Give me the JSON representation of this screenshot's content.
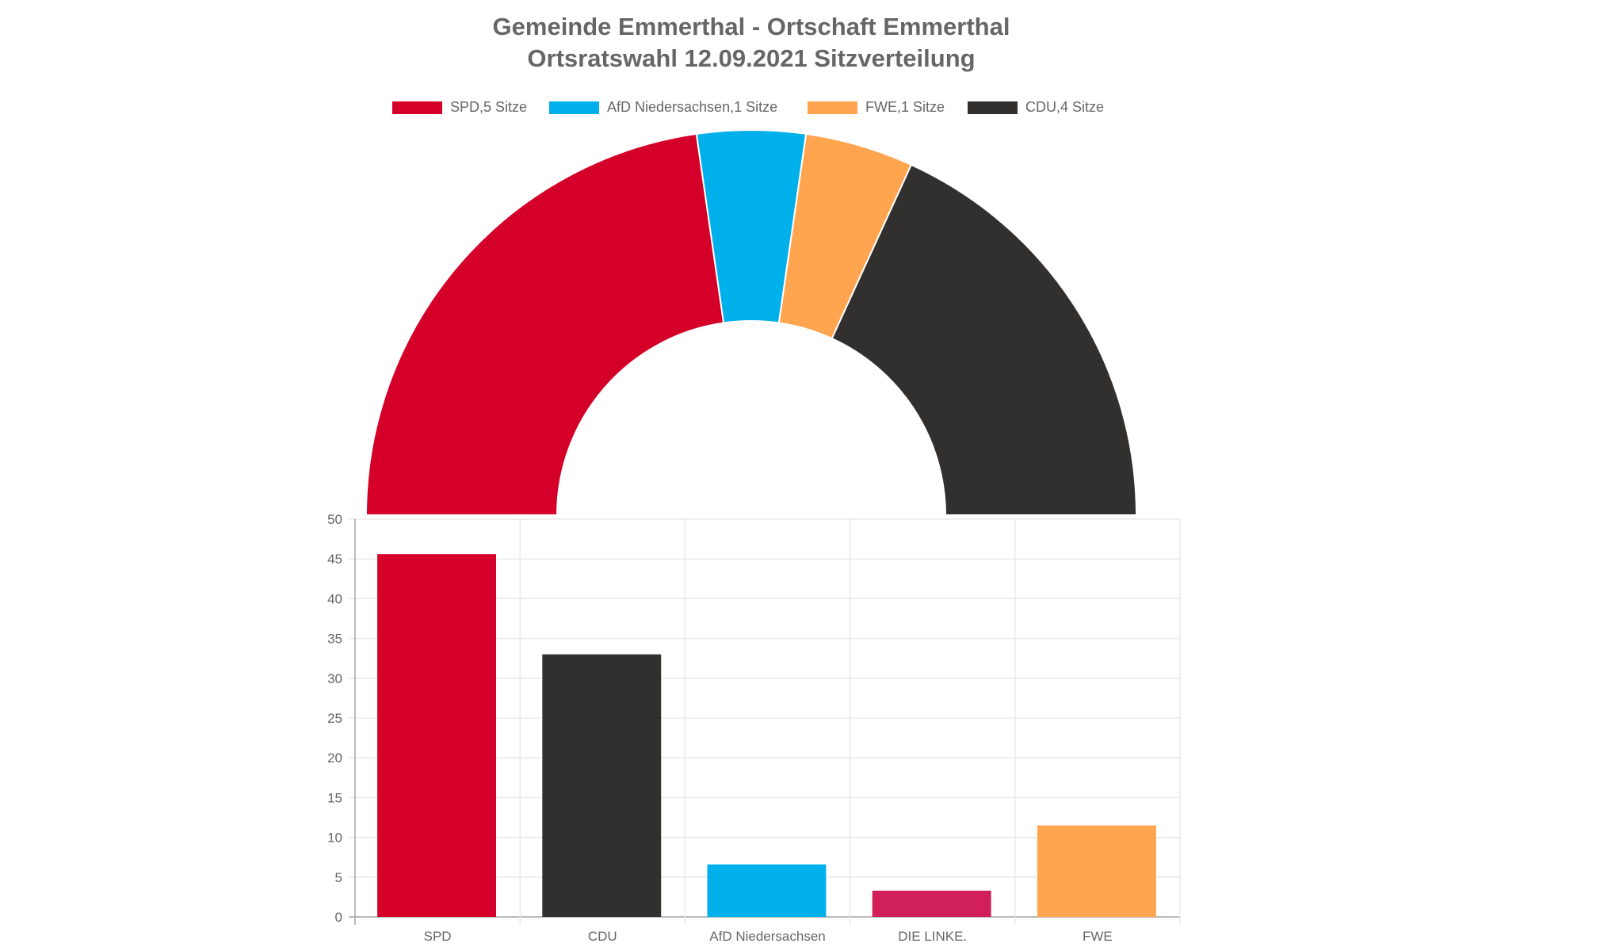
{
  "chart_data": [
    {
      "type": "pie",
      "variant": "half-doughnut",
      "title": [
        "Gemeinde Emmerthal - Ortschaft Emmerthal",
        "Ortsratswahl 12.09.2021 Sitzverteilung"
      ],
      "legend_position": "top",
      "labels": [
        "SPD,5 Sitze",
        "AfD Niedersachsen,1 Sitze",
        "FWE,1 Sitze",
        "CDU,4 Sitze"
      ],
      "values": [
        5,
        1,
        1,
        4
      ],
      "colors": [
        "#d50029",
        "#00b0eb",
        "#ffa550",
        "#32302f"
      ]
    },
    {
      "type": "bar",
      "categories": [
        "SPD",
        "CDU",
        "AfD Niedersachsen",
        "DIE LINKE.",
        "FWE"
      ],
      "values": [
        45.6,
        33.0,
        6.6,
        3.3,
        11.5
      ],
      "colors": [
        "#d50029",
        "#32302f",
        "#00b0eb",
        "#d11f5a",
        "#ffa550"
      ],
      "ylim": [
        0,
        50
      ],
      "yticks": [
        "0",
        "5",
        "10",
        "15",
        "20",
        "25",
        "30",
        "35",
        "40",
        "45",
        "50"
      ],
      "grid": true,
      "xlabel": "",
      "ylabel": ""
    }
  ]
}
